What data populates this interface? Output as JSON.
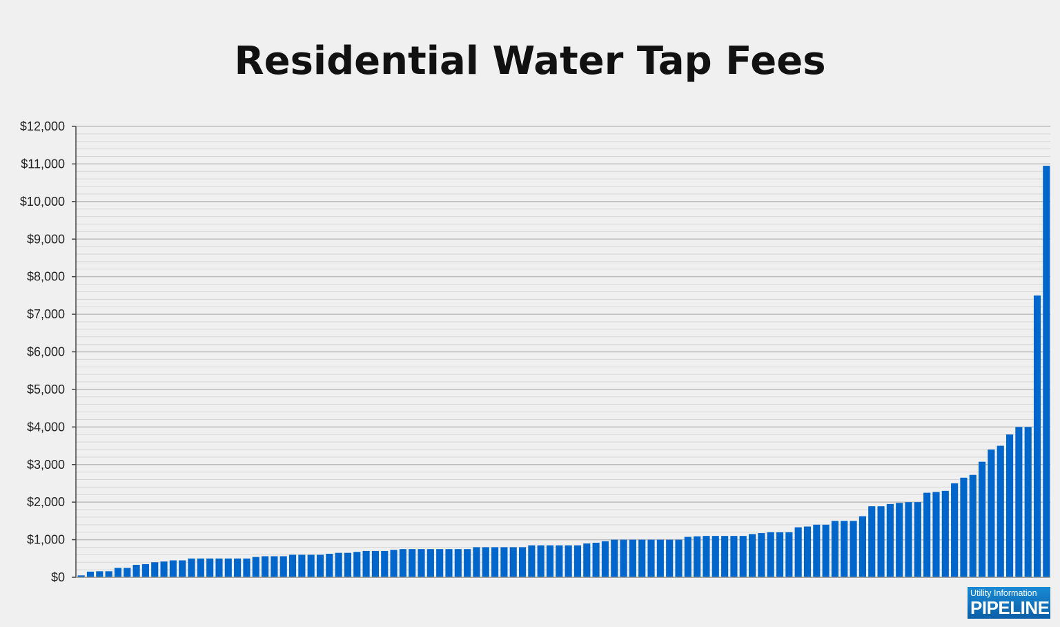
{
  "chart_data": {
    "type": "bar",
    "title": "Residential Water Tap Fees",
    "xlabel": "",
    "ylabel": "",
    "ylim": [
      0,
      12000
    ],
    "yticks": [
      0,
      1000,
      2000,
      3000,
      4000,
      5000,
      6000,
      7000,
      8000,
      9000,
      10000,
      11000,
      12000
    ],
    "ytick_labels": [
      "$0",
      "$1,000",
      "$2,000",
      "$3,000",
      "$4,000",
      "$5,000",
      "$6,000",
      "$7,000",
      "$8,000",
      "$9,000",
      "$10,000",
      "$11,000",
      "$12,000"
    ],
    "minor_grid_step": 200,
    "grid": true,
    "bar_color": "#0066cc",
    "values": [
      50,
      150,
      160,
      160,
      250,
      250,
      330,
      350,
      400,
      420,
      450,
      450,
      500,
      500,
      500,
      500,
      500,
      500,
      500,
      540,
      560,
      560,
      560,
      600,
      600,
      600,
      600,
      625,
      650,
      650,
      675,
      700,
      700,
      700,
      730,
      750,
      750,
      750,
      750,
      750,
      750,
      750,
      750,
      800,
      800,
      800,
      800,
      800,
      800,
      850,
      850,
      850,
      850,
      850,
      850,
      900,
      920,
      960,
      1000,
      1000,
      1000,
      1000,
      1000,
      1000,
      1000,
      1000,
      1075,
      1090,
      1100,
      1100,
      1100,
      1100,
      1100,
      1150,
      1175,
      1200,
      1200,
      1200,
      1330,
      1350,
      1400,
      1400,
      1500,
      1500,
      1500,
      1625,
      1890,
      1890,
      1950,
      1980,
      2000,
      2000,
      2250,
      2270,
      2300,
      2500,
      2650,
      2725,
      3075,
      3400,
      3500,
      3800,
      4000,
      4000,
      7500,
      10950
    ]
  },
  "logo": {
    "line1": "Utility Information",
    "line2": "PIPELINE"
  }
}
